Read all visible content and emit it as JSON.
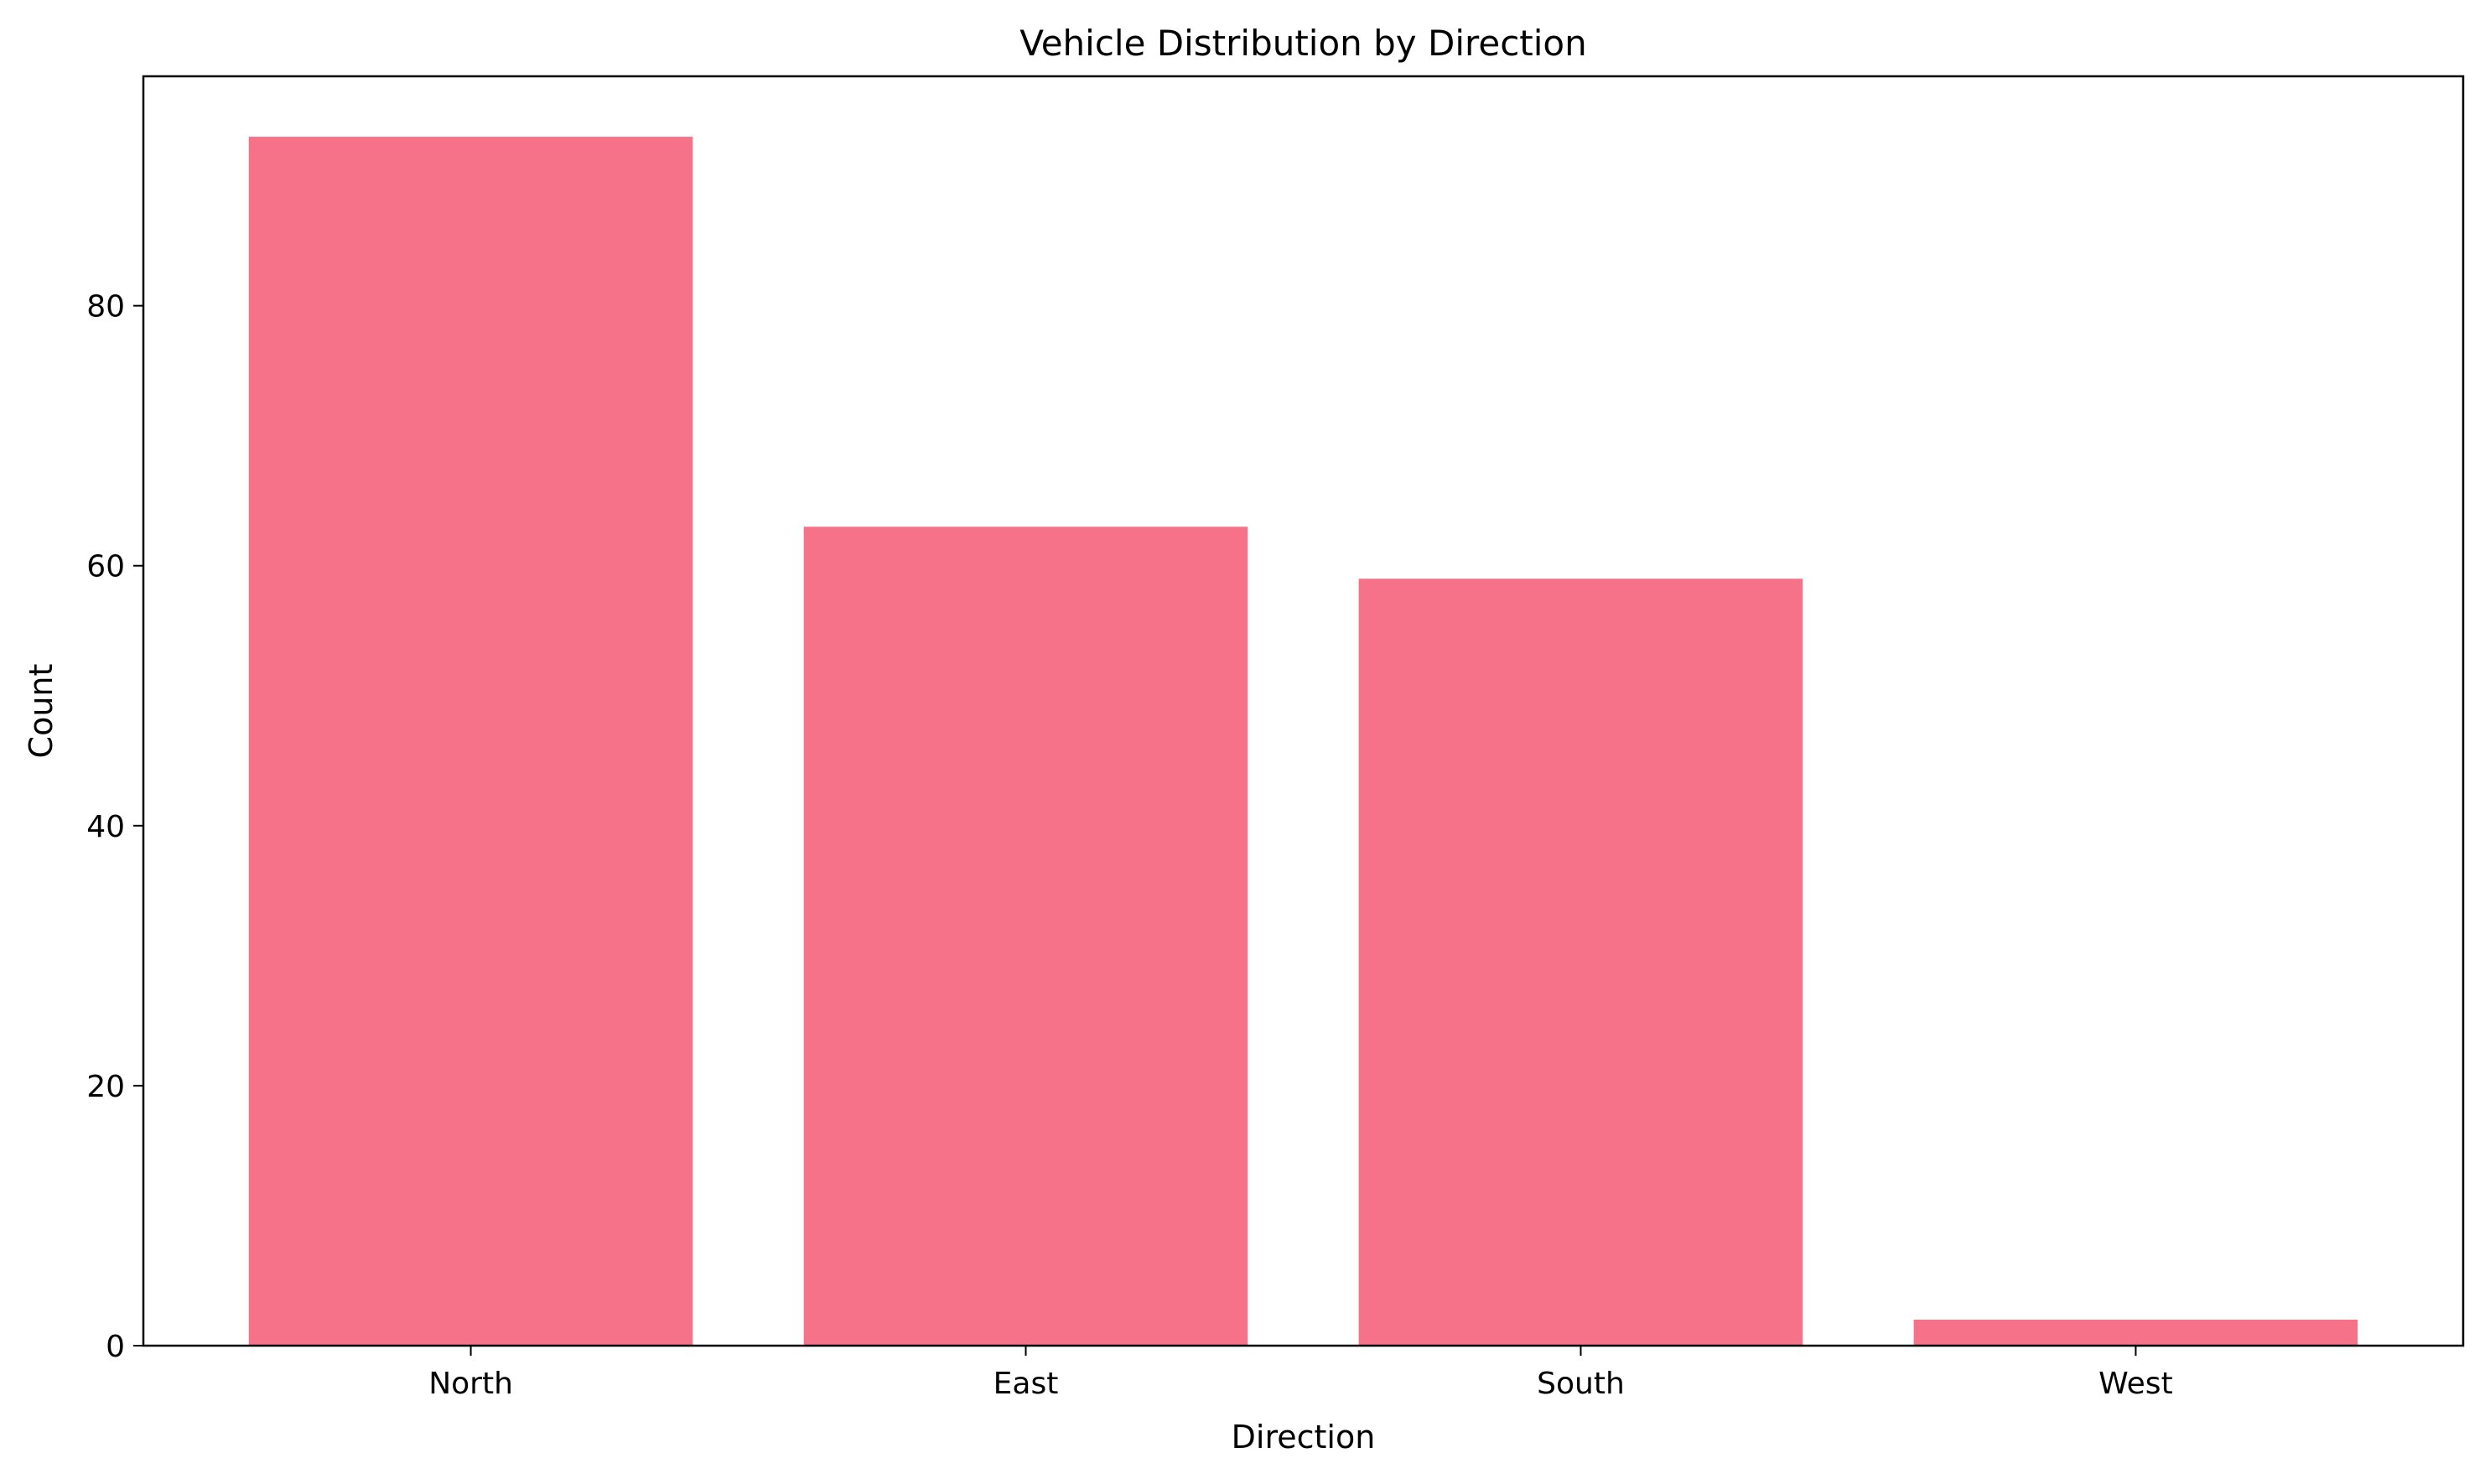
{
  "chart_data": {
    "type": "bar",
    "title": "Vehicle Distribution by Direction",
    "xlabel": "Direction",
    "ylabel": "Count",
    "categories": [
      "North",
      "East",
      "South",
      "West"
    ],
    "values": [
      93,
      63,
      59,
      2
    ],
    "ylim": [
      0,
      97.65
    ],
    "yticks": [
      0,
      20,
      40,
      60,
      80
    ],
    "grid": false,
    "legend": "none",
    "bar_color": "#f67288"
  }
}
